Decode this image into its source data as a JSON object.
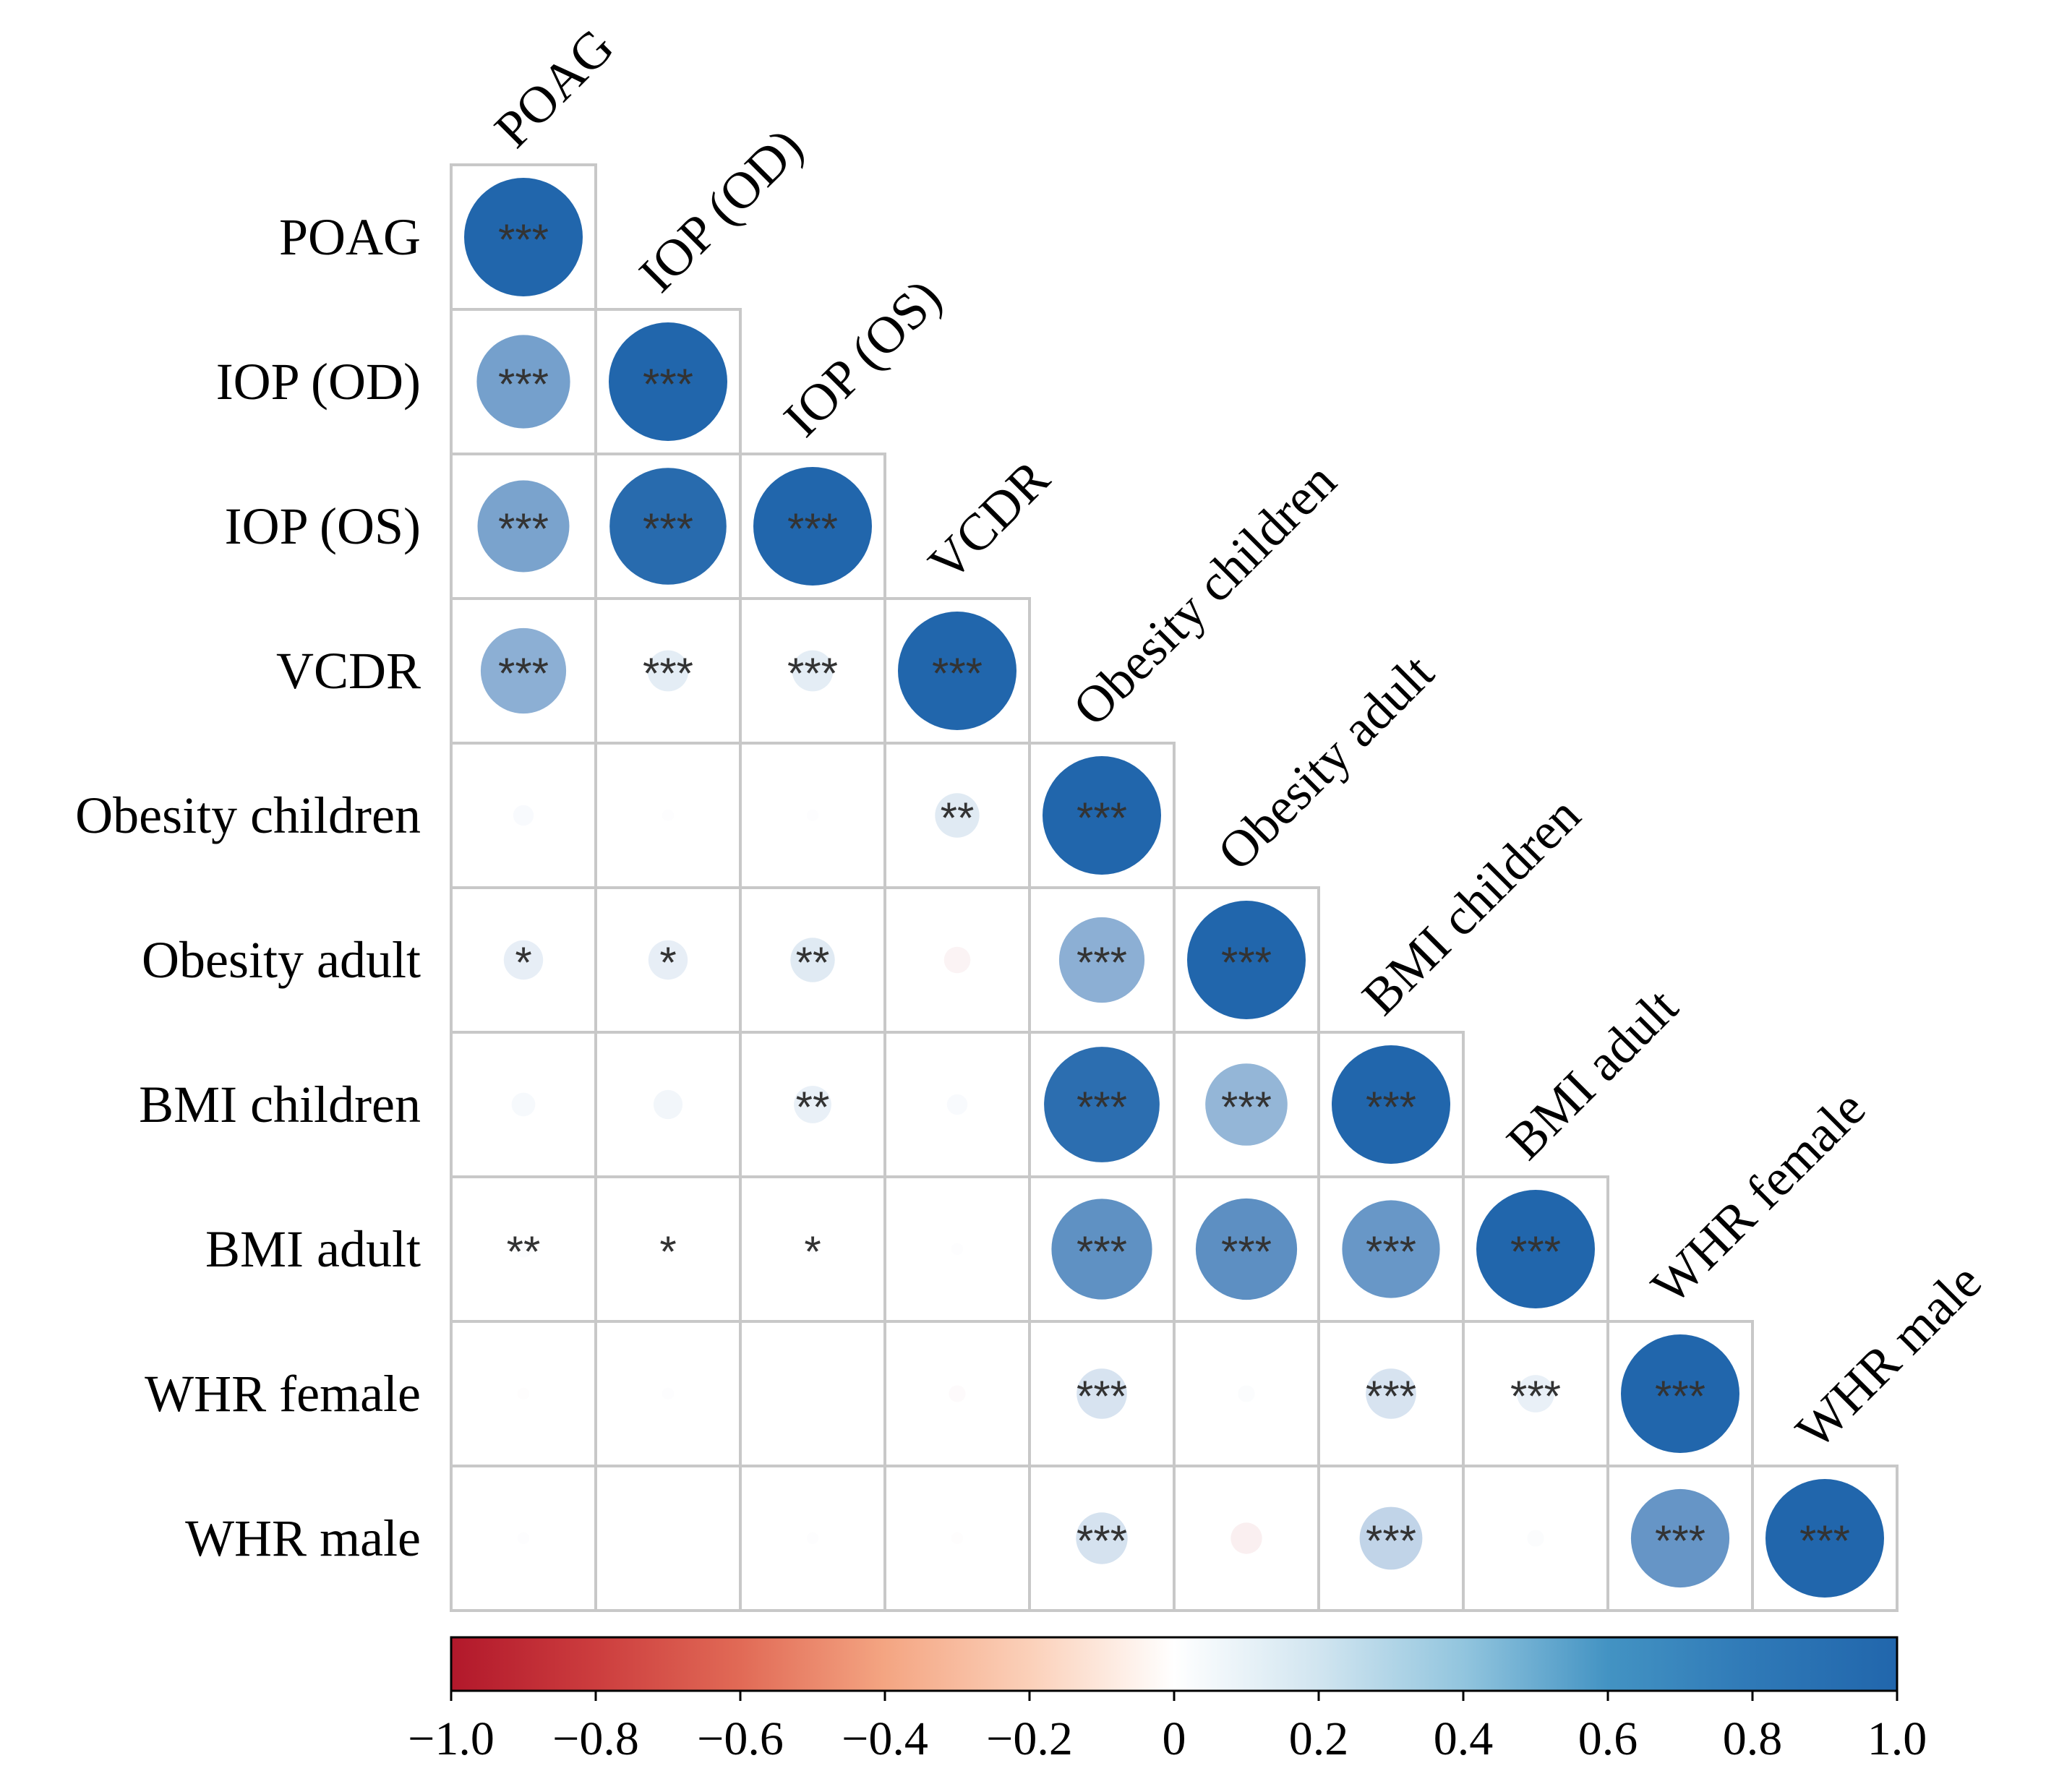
{
  "chart_data": {
    "type": "heatmap",
    "subtype": "correlation-circle-lower-triangle",
    "variables": [
      "POAG",
      "IOP (OD)",
      "IOP (OS)",
      "VCDR",
      "Obesity children",
      "Obesity adult",
      "BMI children",
      "BMI adult",
      "WHR female",
      "WHR male"
    ],
    "matrix": [
      [
        1.0
      ],
      [
        0.62,
        1.0
      ],
      [
        0.6,
        0.97,
        1.0
      ],
      [
        0.52,
        0.12,
        0.12,
        1.0
      ],
      [
        0.03,
        0.01,
        0.01,
        0.14,
        1.0
      ],
      [
        0.11,
        0.11,
        0.14,
        -0.05,
        0.52,
        1.0
      ],
      [
        0.04,
        0.06,
        0.1,
        0.03,
        0.95,
        0.48,
        1.0
      ],
      [
        0.02,
        0.01,
        0.01,
        0.01,
        0.72,
        0.73,
        0.68,
        1.0
      ],
      [
        -0.01,
        0.01,
        0.0,
        -0.02,
        0.18,
        0.02,
        0.18,
        0.1,
        1.0
      ],
      [
        0.01,
        0.0,
        0.01,
        -0.01,
        0.19,
        -0.07,
        0.28,
        0.02,
        0.69,
        1.0
      ]
    ],
    "significance": [
      [
        "***"
      ],
      [
        "***",
        "***"
      ],
      [
        "***",
        "***",
        "***"
      ],
      [
        "***",
        "***",
        "***",
        "***"
      ],
      [
        "",
        "",
        "",
        "**",
        "***"
      ],
      [
        "*",
        "*",
        "**",
        "",
        "***",
        "***"
      ],
      [
        "",
        "",
        "**",
        "",
        "***",
        "***",
        "***"
      ],
      [
        "**",
        "*",
        "*",
        "",
        "***",
        "***",
        "***",
        "***"
      ],
      [
        "",
        "",
        "",
        "",
        "***",
        "",
        "***",
        "***",
        "***"
      ],
      [
        "",
        "",
        "",
        "",
        "***",
        "",
        "***",
        "",
        "***",
        "***"
      ]
    ],
    "colorbar": {
      "range": [
        -1.0,
        1.0
      ],
      "ticks": [
        -1.0,
        -0.8,
        -0.6,
        -0.4,
        -0.2,
        0,
        0.2,
        0.4,
        0.6,
        0.8,
        1.0
      ],
      "tick_labels": [
        "−1.0",
        "−0.8",
        "−0.6",
        "−0.4",
        "−0.2",
        "0",
        "0.2",
        "0.4",
        "0.6",
        "0.8",
        "1.0"
      ],
      "low_color": "#b2182b",
      "mid_color": "#ffffff",
      "high_color": "#2166ac"
    },
    "colors": {
      "grid": "#c8c8c8",
      "stars": "#333333"
    }
  }
}
